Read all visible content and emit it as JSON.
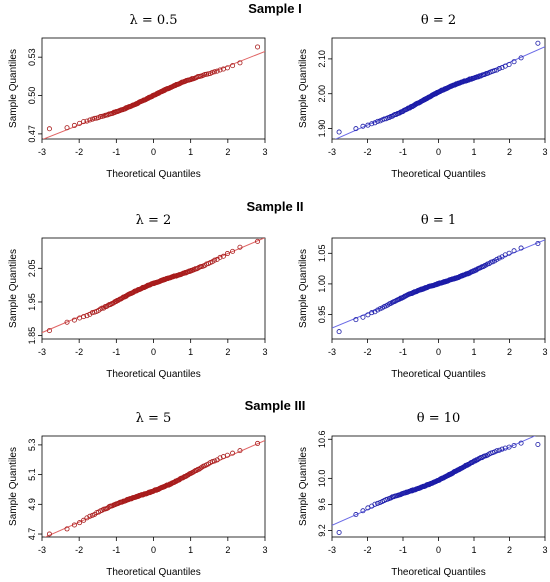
{
  "sample_titles": [
    "Sample I",
    "Sample II",
    "Sample III"
  ],
  "xlabel": "Theoretical Quantiles",
  "ylabel": "Sample Quantiles",
  "colors": {
    "red": "#a81c1c",
    "blue": "#1c1ca8",
    "red_line": "#e06464",
    "blue_line": "#6a6ae6"
  },
  "chart_data": [
    {
      "type": "scatter",
      "title": "λ = 0.5",
      "sample": "Sample I",
      "color": "red",
      "xlim": [
        -3,
        3
      ],
      "ylim": [
        0.466,
        0.545
      ],
      "xticks": [
        -3,
        -2,
        -1,
        0,
        1,
        2,
        3
      ],
      "yticks": [
        0.47,
        0.5,
        0.53
      ],
      "ytick_labels": [
        "0.47",
        "0.50",
        "0.53"
      ],
      "reference_line": {
        "intercept": 0.5,
        "slope": 0.0115
      },
      "x_range": [
        -2.8,
        2.8
      ],
      "tail_low": 0.474,
      "tail_high": 0.538
    },
    {
      "type": "scatter",
      "title": "θ = 2",
      "sample": "Sample I",
      "color": "blue",
      "xlim": [
        -3,
        3
      ],
      "ylim": [
        1.87,
        2.16
      ],
      "xticks": [
        -3,
        -2,
        -1,
        0,
        1,
        2,
        3
      ],
      "yticks": [
        1.9,
        2.0,
        2.1
      ],
      "ytick_labels": [
        "1.90",
        "2.00",
        "2.10"
      ],
      "reference_line": {
        "intercept": 2.0,
        "slope": 0.045
      },
      "x_range": [
        -2.8,
        2.8
      ],
      "tail_low": 1.89,
      "tail_high": 2.145
    },
    {
      "type": "scatter",
      "title": "λ = 2",
      "sample": "Sample II",
      "color": "red",
      "xlim": [
        -3,
        3
      ],
      "ylim": [
        1.84,
        2.14
      ],
      "xticks": [
        -3,
        -2,
        -1,
        0,
        1,
        2,
        3
      ],
      "yticks": [
        1.85,
        1.95,
        2.05
      ],
      "ytick_labels": [
        "1.85",
        "1.95",
        "2.05"
      ],
      "reference_line": {
        "intercept": 2.0,
        "slope": 0.047
      },
      "x_range": [
        -2.8,
        2.8
      ],
      "tail_low": 1.865,
      "tail_high": 2.13
    },
    {
      "type": "scatter",
      "title": "θ = 1",
      "sample": "Sample II",
      "color": "blue",
      "xlim": [
        -3,
        3
      ],
      "ylim": [
        0.91,
        1.075
      ],
      "xticks": [
        -3,
        -2,
        -1,
        0,
        1,
        2,
        3
      ],
      "yticks": [
        0.95,
        1.0,
        1.05
      ],
      "ytick_labels": [
        "0.95",
        "1.00",
        "1.05"
      ],
      "reference_line": {
        "intercept": 1.0,
        "slope": 0.024
      },
      "x_range": [
        -2.8,
        2.8
      ],
      "tail_low": 0.922,
      "tail_high": 1.066
    },
    {
      "type": "scatter",
      "title": "λ = 5",
      "sample": "Sample III",
      "color": "red",
      "xlim": [
        -3,
        3
      ],
      "ylim": [
        4.68,
        5.36
      ],
      "xticks": [
        -3,
        -2,
        -1,
        0,
        1,
        2,
        3
      ],
      "yticks": [
        4.7,
        4.9,
        5.1,
        5.3
      ],
      "ytick_labels": [
        "4.7",
        "4.9",
        "5.1",
        "5.3"
      ],
      "reference_line": {
        "intercept": 5.0,
        "slope": 0.11
      },
      "x_range": [
        -2.8,
        2.8
      ],
      "tail_low": 4.7,
      "tail_high": 5.31
    },
    {
      "type": "scatter",
      "title": "θ = 10",
      "sample": "Sample III",
      "color": "blue",
      "xlim": [
        -3,
        3
      ],
      "ylim": [
        9.1,
        10.65
      ],
      "xticks": [
        -3,
        -2,
        -1,
        0,
        1,
        2,
        3
      ],
      "yticks": [
        9.2,
        9.6,
        10.0,
        10.6
      ],
      "ytick_labels": [
        "9.2",
        "9.6",
        "10.0",
        "10.6"
      ],
      "reference_line": {
        "intercept": 10.0,
        "slope": 0.24
      },
      "x_range": [
        -2.8,
        2.8
      ],
      "tail_low": 9.17,
      "tail_high": 10.52
    }
  ]
}
